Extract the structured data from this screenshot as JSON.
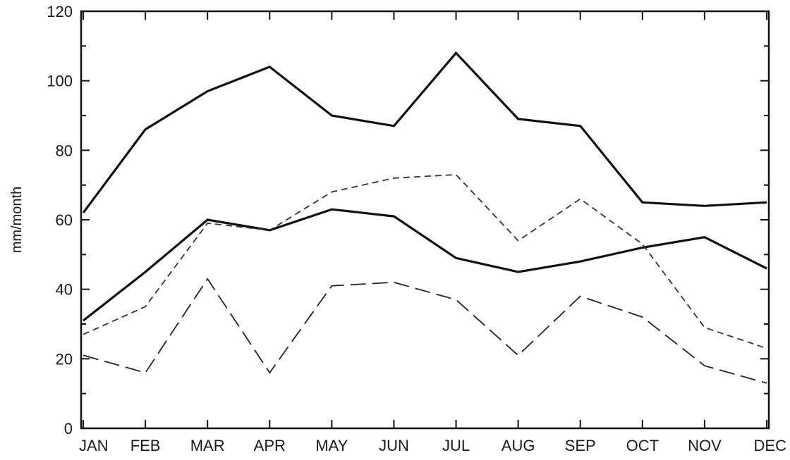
{
  "chart_data": {
    "type": "line",
    "title": "",
    "xlabel": "",
    "ylabel": "mm/month",
    "categories": [
      "JAN",
      "FEB",
      "MAR",
      "APR",
      "MAY",
      "JUN",
      "JUL",
      "AUG",
      "SEP",
      "OCT",
      "NOV",
      "DEC"
    ],
    "ylim": [
      0,
      120
    ],
    "yticks": [
      0,
      20,
      40,
      60,
      80,
      100,
      120
    ],
    "grid": false,
    "legend": "none",
    "series": [
      {
        "style": "solid-thick",
        "color": "#111111",
        "values": [
          62,
          86,
          97,
          104,
          90,
          87,
          108,
          89,
          87,
          65,
          64,
          65
        ]
      },
      {
        "style": "solid-thick",
        "color": "#111111",
        "values": [
          31,
          45,
          60,
          57,
          63,
          61,
          49,
          45,
          48,
          52,
          55,
          46
        ]
      },
      {
        "style": "short-dash",
        "color": "#333333",
        "values": [
          27,
          35,
          59,
          57,
          68,
          72,
          73,
          54,
          66,
          53,
          29,
          23
        ]
      },
      {
        "style": "long-dash",
        "color": "#222222",
        "values": [
          21,
          16,
          43,
          16,
          41,
          42,
          37,
          21,
          38,
          32,
          18,
          13
        ]
      }
    ]
  }
}
